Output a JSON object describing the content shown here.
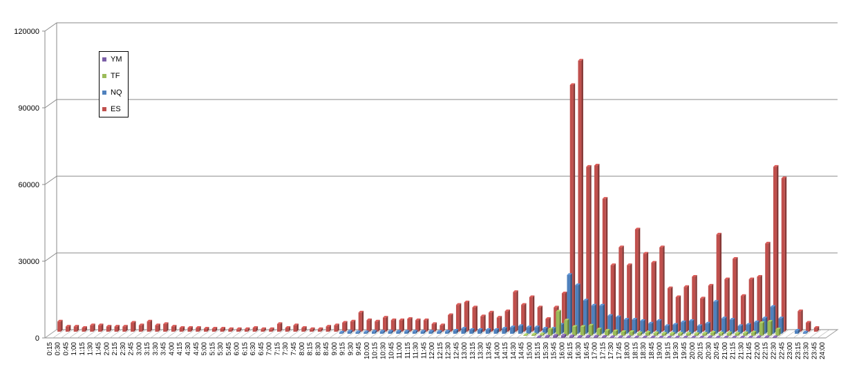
{
  "chart_data": {
    "type": "bar",
    "title": "",
    "xlabel": "",
    "ylabel": "",
    "ylim": [
      0,
      120000
    ],
    "yticks": [
      "0",
      "30000",
      "60000",
      "90000",
      "120000"
    ],
    "grid": true,
    "legend_position": "top-left",
    "categories": [
      "0:15",
      "0:30",
      "0:45",
      "1:00",
      "1:15",
      "1:30",
      "1:45",
      "2:00",
      "2:15",
      "2:30",
      "2:45",
      "3:00",
      "3:15",
      "3:30",
      "3:45",
      "4:00",
      "4:15",
      "4:30",
      "4:45",
      "5:00",
      "5:15",
      "5:30",
      "5:45",
      "6:00",
      "6:15",
      "6:30",
      "6:45",
      "7:00",
      "7:15",
      "7:30",
      "7:45",
      "8:00",
      "8:15",
      "8:30",
      "8:45",
      "9:00",
      "9:15",
      "9:30",
      "9:45",
      "10:00",
      "10:15",
      "10:30",
      "10:45",
      "11:00",
      "11:15",
      "11:30",
      "11:45",
      "12:00",
      "12:15",
      "12:30",
      "12:45",
      "13:00",
      "13:15",
      "13:30",
      "13:45",
      "14:00",
      "14:15",
      "14:30",
      "14:45",
      "15:00",
      "15:15",
      "15:30",
      "15:45",
      "16:00",
      "16:15",
      "16:30",
      "16:45",
      "17:00",
      "17:15",
      "17:30",
      "17:45",
      "18:00",
      "18:15",
      "18:30",
      "18:45",
      "19:00",
      "19:15",
      "19:30",
      "19:45",
      "20:00",
      "20:15",
      "20:30",
      "20:45",
      "21:00",
      "21:15",
      "21:30",
      "21:45",
      "22:00",
      "22:15",
      "22:30",
      "22:45",
      "23:00",
      "23:15",
      "23:30",
      "23:45",
      "24:00"
    ],
    "series": [
      {
        "name": "YM",
        "color": "#7B5EA7",
        "values": [
          0,
          0,
          0,
          0,
          0,
          0,
          0,
          0,
          0,
          0,
          0,
          0,
          0,
          0,
          0,
          0,
          0,
          0,
          0,
          0,
          0,
          0,
          0,
          0,
          0,
          0,
          0,
          0,
          0,
          0,
          0,
          0,
          0,
          0,
          0,
          0,
          0,
          0,
          0,
          0,
          0,
          0,
          0,
          0,
          0,
          0,
          0,
          0,
          0,
          0,
          0,
          0,
          0,
          0,
          0,
          0,
          0,
          0,
          0,
          0,
          300,
          500,
          800,
          900,
          600,
          400,
          500,
          500,
          400,
          300,
          300,
          300,
          250,
          250,
          250,
          200,
          200,
          200,
          200,
          200,
          200,
          300,
          200,
          200,
          200,
          200,
          200,
          300,
          300,
          300,
          0,
          0,
          0,
          0,
          0,
          0
        ]
      },
      {
        "name": "TF",
        "color": "#9BBB59",
        "values": [
          0,
          0,
          0,
          0,
          0,
          0,
          0,
          0,
          0,
          0,
          0,
          0,
          0,
          0,
          0,
          0,
          0,
          0,
          0,
          0,
          0,
          0,
          0,
          0,
          0,
          0,
          0,
          0,
          0,
          0,
          0,
          0,
          0,
          0,
          0,
          0,
          0,
          0,
          0,
          0,
          0,
          0,
          0,
          0,
          0,
          0,
          0,
          0,
          0,
          0,
          0,
          0,
          0,
          0,
          0,
          0,
          0,
          0,
          300,
          500,
          600,
          2500,
          9500,
          6000,
          3500,
          3500,
          4000,
          2500,
          2000,
          1800,
          1500,
          1500,
          1000,
          1200,
          1000,
          800,
          800,
          800,
          800,
          700,
          800,
          1200,
          900,
          1000,
          800,
          1000,
          1300,
          5000,
          5500,
          2500,
          0,
          0,
          0,
          0,
          0,
          0
        ]
      },
      {
        "name": "NQ",
        "color": "#4F81BD",
        "values": [
          0,
          0,
          0,
          0,
          0,
          0,
          0,
          0,
          0,
          0,
          0,
          0,
          0,
          0,
          0,
          0,
          0,
          0,
          0,
          0,
          0,
          0,
          0,
          0,
          0,
          0,
          0,
          0,
          0,
          0,
          0,
          0,
          0,
          0,
          0,
          500,
          800,
          600,
          600,
          800,
          800,
          800,
          800,
          800,
          800,
          800,
          800,
          700,
          800,
          1200,
          2000,
          1500,
          1500,
          1500,
          1500,
          2000,
          2500,
          3000,
          2500,
          2500,
          2000,
          2000,
          3500,
          23000,
          19000,
          13000,
          11000,
          11000,
          7000,
          6500,
          5500,
          5500,
          5000,
          4000,
          5000,
          3000,
          3500,
          4500,
          5000,
          3000,
          4000,
          12500,
          6000,
          5500,
          3000,
          3500,
          4500,
          6000,
          10500,
          6000,
          0,
          1200,
          500,
          0,
          0,
          0
        ]
      },
      {
        "name": "ES",
        "color": "#C0504D",
        "values": [
          4000,
          2000,
          2000,
          1500,
          2500,
          2500,
          2000,
          2000,
          2000,
          3500,
          2500,
          4000,
          2500,
          3000,
          2000,
          1500,
          1500,
          1500,
          1200,
          1200,
          1200,
          1000,
          1000,
          1000,
          1500,
          1000,
          1000,
          3000,
          1500,
          2500,
          1500,
          1000,
          1000,
          2000,
          2500,
          3500,
          4000,
          7500,
          4500,
          4000,
          5500,
          4500,
          4500,
          5000,
          4500,
          4500,
          3000,
          2500,
          6500,
          10500,
          11500,
          9500,
          6000,
          7500,
          5500,
          8000,
          15500,
          10500,
          13500,
          9500,
          5000,
          9500,
          15000,
          96500,
          106000,
          64500,
          65000,
          52000,
          26000,
          33000,
          26000,
          40000,
          30500,
          27000,
          33000,
          17000,
          13500,
          17500,
          21500,
          13000,
          18000,
          38000,
          20500,
          28500,
          14000,
          20500,
          21500,
          34500,
          64500,
          60000,
          0,
          8000,
          3500,
          1500,
          0,
          0
        ]
      }
    ]
  }
}
